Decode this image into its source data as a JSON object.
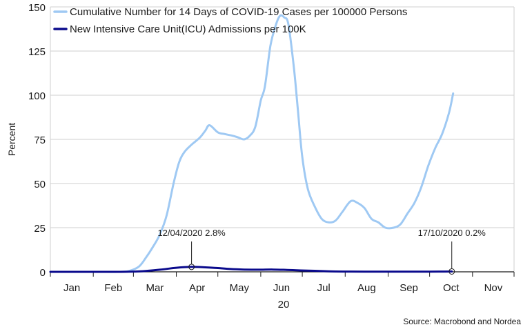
{
  "chart_data": {
    "type": "line",
    "title": "",
    "xlabel": "20",
    "ylabel": "Percent",
    "ylim": [
      0,
      150
    ],
    "yticks": [
      0,
      25,
      50,
      75,
      100,
      125,
      150
    ],
    "x_tick_labels": [
      "Jan",
      "Feb",
      "Mar",
      "Apr",
      "May",
      "Jun",
      "Jul",
      "Aug",
      "Sep",
      "Oct",
      "Nov"
    ],
    "x_range": [
      "2020-01-01",
      "2020-11-30"
    ],
    "grid": "horizontal",
    "legend_position": "top-left",
    "source": "Source: Macrobond and Nordea",
    "series": [
      {
        "name": "Cumulative Number for 14 Days of COVID-19 Cases per 100000 Persons",
        "color": "#9fc9f3",
        "x": [
          "2020-01-01",
          "2020-02-01",
          "2020-02-20",
          "2020-02-27",
          "2020-03-05",
          "2020-03-10",
          "2020-03-15",
          "2020-03-20",
          "2020-03-25",
          "2020-03-30",
          "2020-04-03",
          "2020-04-07",
          "2020-04-12",
          "2020-04-18",
          "2020-04-22",
          "2020-04-25",
          "2020-05-01",
          "2020-05-06",
          "2020-05-12",
          "2020-05-16",
          "2020-05-20",
          "2020-05-24",
          "2020-05-28",
          "2020-06-01",
          "2020-06-04",
          "2020-06-08",
          "2020-06-12",
          "2020-06-15",
          "2020-06-18",
          "2020-06-21",
          "2020-06-25",
          "2020-06-28",
          "2020-07-01",
          "2020-07-05",
          "2020-07-10",
          "2020-07-15",
          "2020-07-20",
          "2020-07-25",
          "2020-07-30",
          "2020-08-05",
          "2020-08-10",
          "2020-08-15",
          "2020-08-20",
          "2020-08-25",
          "2020-08-30",
          "2020-09-05",
          "2020-09-10",
          "2020-09-15",
          "2020-09-20",
          "2020-09-25",
          "2020-09-30",
          "2020-10-05",
          "2020-10-10",
          "2020-10-15",
          "2020-10-18"
        ],
        "values": [
          0,
          0,
          0,
          0.5,
          3,
          8,
          14,
          21,
          32,
          50,
          62,
          68,
          72,
          76,
          80,
          83,
          79,
          78,
          77,
          76,
          75,
          77,
          82,
          97,
          105,
          128,
          140,
          145,
          144,
          140,
          115,
          90,
          65,
          47,
          37,
          30,
          28,
          29,
          34,
          40,
          39,
          36,
          30,
          28,
          25,
          25,
          27,
          33,
          39,
          48,
          60,
          70,
          78,
          90,
          101
        ]
      },
      {
        "name": "New Intensive Care Unit(ICU) Admissions per 100K",
        "color": "#0a0a8c",
        "x": [
          "2020-01-01",
          "2020-02-15",
          "2020-02-28",
          "2020-03-10",
          "2020-03-20",
          "2020-04-01",
          "2020-04-12",
          "2020-04-20",
          "2020-04-30",
          "2020-05-10",
          "2020-05-20",
          "2020-05-31",
          "2020-06-10",
          "2020-06-20",
          "2020-06-30",
          "2020-07-10",
          "2020-07-20",
          "2020-08-01",
          "2020-08-15",
          "2020-09-01",
          "2020-09-15",
          "2020-10-01",
          "2020-10-10",
          "2020-10-17"
        ],
        "values": [
          0,
          0,
          0.1,
          0.5,
          1.2,
          2.3,
          2.8,
          2.6,
          2.2,
          1.6,
          1.3,
          1.2,
          1.3,
          1.1,
          0.8,
          0.6,
          0.3,
          0.15,
          0.1,
          0.1,
          0.1,
          0.1,
          0.15,
          0.2
        ]
      }
    ],
    "annotations": [
      {
        "text": "12/04/2020 2.8%",
        "x": "2020-04-12",
        "y": 2.8,
        "series": 1
      },
      {
        "text": "17/10/2020 0.2%",
        "x": "2020-10-17",
        "y": 0.2,
        "series": 1
      }
    ]
  }
}
